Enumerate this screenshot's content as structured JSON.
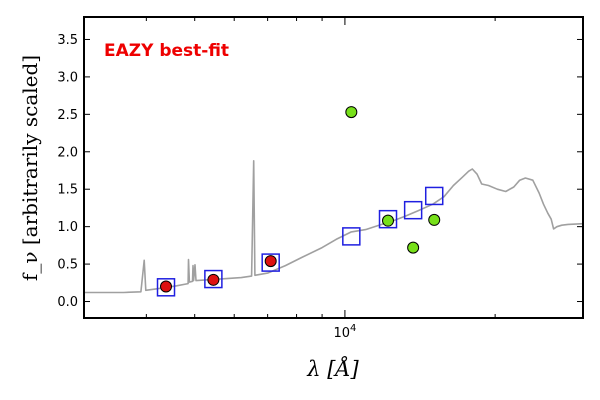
{
  "chart_data": {
    "type": "scatter",
    "title": "",
    "annotation": "EAZY best-fit",
    "xlabel": "λ [Å]",
    "ylabel": "f_ν [arbitrarily scaled]",
    "xscale": "log",
    "xlim": [
      3000,
      30000
    ],
    "ylim": [
      -0.22,
      3.8
    ],
    "grid": false,
    "legend": "none",
    "x_tick_labels": [
      {
        "value": 10000,
        "label": "10^4"
      }
    ],
    "y_ticks": [
      0.0,
      0.5,
      1.0,
      1.5,
      2.0,
      2.5,
      3.0,
      3.5
    ],
    "y_tick_labels": [
      "0.0",
      "0.5",
      "1.0",
      "1.5",
      "2.0",
      "2.5",
      "3.0",
      "3.5"
    ],
    "colors": {
      "template": "#a0a0a0",
      "model": "#1f1fe0",
      "detected": "#dd1111",
      "other": "#77e01a",
      "annotation": "#ee0000"
    },
    "series": [
      {
        "kind": "template-line",
        "points": [
          [
            3000,
            0.12
          ],
          [
            3600,
            0.12
          ],
          [
            3900,
            0.13
          ],
          [
            3960,
            0.55
          ],
          [
            3990,
            0.15
          ],
          [
            4200,
            0.17
          ],
          [
            4600,
            0.21
          ],
          [
            4850,
            0.24
          ],
          [
            4860,
            0.56
          ],
          [
            4880,
            0.26
          ],
          [
            4950,
            0.27
          ],
          [
            4960,
            0.48
          ],
          [
            4975,
            0.28
          ],
          [
            5007,
            0.49
          ],
          [
            5030,
            0.28
          ],
          [
            5600,
            0.3
          ],
          [
            6200,
            0.32
          ],
          [
            6500,
            0.34
          ],
          [
            6563,
            1.88
          ],
          [
            6600,
            0.35
          ],
          [
            7000,
            0.38
          ],
          [
            7600,
            0.48
          ],
          [
            8200,
            0.59
          ],
          [
            9000,
            0.72
          ],
          [
            9600,
            0.83
          ],
          [
            10300,
            0.93
          ],
          [
            11000,
            0.96
          ],
          [
            11600,
            1.01
          ],
          [
            12500,
            1.08
          ],
          [
            13200,
            1.14
          ],
          [
            14000,
            1.21
          ],
          [
            15000,
            1.3
          ],
          [
            15800,
            1.4
          ],
          [
            16500,
            1.55
          ],
          [
            17200,
            1.66
          ],
          [
            17700,
            1.74
          ],
          [
            18000,
            1.77
          ],
          [
            18400,
            1.7
          ],
          [
            18800,
            1.57
          ],
          [
            19400,
            1.55
          ],
          [
            20200,
            1.5
          ],
          [
            21000,
            1.47
          ],
          [
            21800,
            1.53
          ],
          [
            22400,
            1.62
          ],
          [
            23000,
            1.65
          ],
          [
            23800,
            1.62
          ],
          [
            24500,
            1.45
          ],
          [
            25000,
            1.3
          ],
          [
            25500,
            1.18
          ],
          [
            25900,
            1.1
          ],
          [
            26200,
            0.97
          ],
          [
            26600,
            1.0
          ],
          [
            27200,
            1.02
          ],
          [
            28000,
            1.03
          ],
          [
            30000,
            1.04
          ]
        ]
      },
      {
        "kind": "model-photometry",
        "marker": "square",
        "points": [
          [
            4380,
            0.19
          ],
          [
            5450,
            0.3
          ],
          [
            7100,
            0.52
          ],
          [
            10300,
            0.87
          ],
          [
            12200,
            1.1
          ],
          [
            13700,
            1.22
          ],
          [
            15100,
            1.41
          ]
        ]
      },
      {
        "kind": "observed-red",
        "marker": "circle",
        "points": [
          [
            4380,
            0.2
          ],
          [
            5450,
            0.29
          ],
          [
            7100,
            0.54
          ]
        ]
      },
      {
        "kind": "observed-green",
        "marker": "circle",
        "points": [
          [
            10300,
            2.53
          ],
          [
            12200,
            1.08
          ],
          [
            13700,
            0.72
          ],
          [
            15100,
            1.09
          ]
        ]
      }
    ]
  }
}
